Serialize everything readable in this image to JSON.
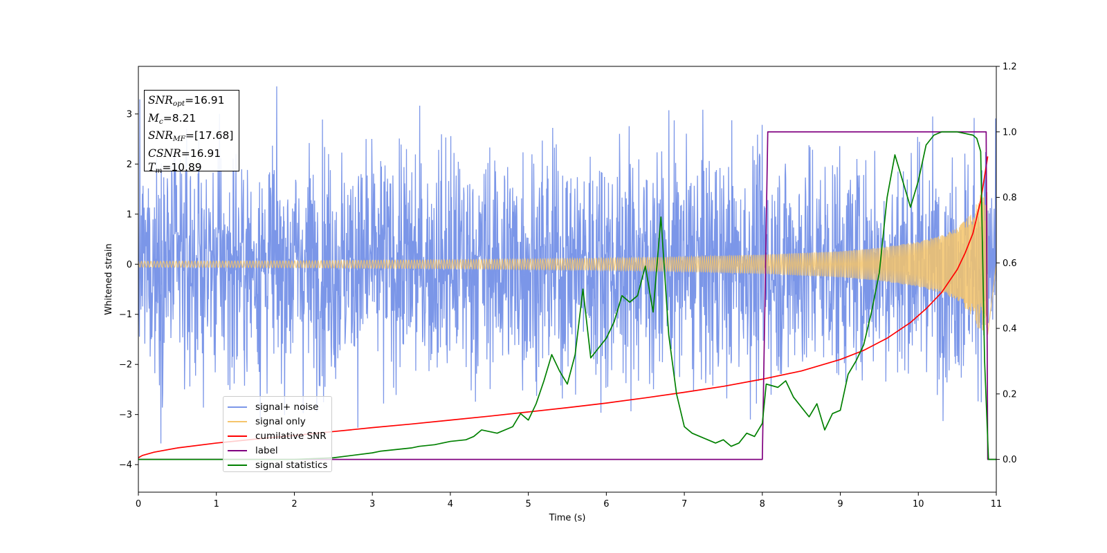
{
  "chart_data": {
    "type": "line",
    "title": "",
    "xlabel": "Time (s)",
    "ylabel": "Whitened strain",
    "xlim": [
      0,
      11
    ],
    "ylim": [
      -4.55,
      3.95
    ],
    "y2lim": [
      -0.1,
      1.2
    ],
    "x_ticks": [
      "0",
      "1",
      "2",
      "3",
      "4",
      "5",
      "6",
      "7",
      "8",
      "9",
      "10",
      "11"
    ],
    "y_ticks": [
      "3",
      "2",
      "1",
      "0",
      "−1",
      "−2",
      "−3",
      "−4"
    ],
    "y2_ticks": [
      "1.2",
      "1.0",
      "0.8",
      "0.6",
      "0.4",
      "0.2",
      "0.0"
    ],
    "grid": false,
    "legend_position": "lower-left",
    "annotation": {
      "snr_opt": "=16.91",
      "mc": "=8.21",
      "snr_mf": "=[17.68]",
      "csnr": "=16.91",
      "tm": "=10.89"
    },
    "series": [
      {
        "name": "signal+ noise",
        "color": "#7b96e8",
        "axis": "left",
        "description_values": {
          "noise_std": 1.0,
          "approx_range": [
            -4.15,
            3.55
          ]
        }
      },
      {
        "name": "signal only",
        "color": "#f5c46a",
        "axis": "left",
        "envelope": {
          "x": [
            0,
            2,
            4,
            6,
            7,
            8,
            9,
            9.5,
            10,
            10.3,
            10.5,
            10.7,
            10.8,
            10.89,
            11
          ],
          "amplitude": [
            0.06,
            0.07,
            0.09,
            0.12,
            0.15,
            0.19,
            0.26,
            0.33,
            0.45,
            0.58,
            0.72,
            1.05,
            1.4,
            1.45,
            0
          ]
        }
      },
      {
        "name": "cumilative SNR",
        "color": "#ff0000",
        "axis": "right",
        "x": [
          0,
          0.05,
          0.2,
          0.5,
          1,
          1.5,
          2,
          2.5,
          3,
          3.5,
          4,
          4.5,
          5,
          5.5,
          6,
          6.5,
          7,
          7.5,
          8,
          8.5,
          9,
          9.3,
          9.6,
          9.9,
          10.1,
          10.3,
          10.5,
          10.6,
          10.7,
          10.8,
          10.89
        ],
        "values": [
          0.005,
          0.012,
          0.022,
          0.035,
          0.05,
          0.062,
          0.073,
          0.085,
          0.097,
          0.108,
          0.12,
          0.132,
          0.145,
          0.158,
          0.172,
          0.188,
          0.205,
          0.223,
          0.245,
          0.27,
          0.305,
          0.333,
          0.37,
          0.418,
          0.46,
          0.51,
          0.58,
          0.63,
          0.69,
          0.79,
          0.925
        ]
      },
      {
        "name": "label",
        "color": "#800080",
        "axis": "right",
        "x": [
          0,
          8.0,
          8.07,
          10.87,
          10.89,
          11
        ],
        "values": [
          0,
          0,
          1,
          1,
          0,
          0
        ]
      },
      {
        "name": "signal statistics",
        "color": "#008000",
        "axis": "right",
        "x": [
          0,
          0.5,
          1,
          1.5,
          2,
          2.5,
          3,
          3.1,
          3.3,
          3.5,
          3.6,
          3.8,
          4,
          4.2,
          4.3,
          4.4,
          4.5,
          4.6,
          4.8,
          4.9,
          5.0,
          5.1,
          5.2,
          5.3,
          5.4,
          5.5,
          5.6,
          5.7,
          5.8,
          5.9,
          6.0,
          6.1,
          6.2,
          6.3,
          6.4,
          6.5,
          6.6,
          6.7,
          6.8,
          6.9,
          7.0,
          7.1,
          7.2,
          7.3,
          7.4,
          7.5,
          7.6,
          7.7,
          7.8,
          7.9,
          8.0,
          8.05,
          8.2,
          8.3,
          8.4,
          8.5,
          8.6,
          8.7,
          8.8,
          8.9,
          9.0,
          9.1,
          9.2,
          9.3,
          9.4,
          9.5,
          9.6,
          9.7,
          9.8,
          9.9,
          10.0,
          10.1,
          10.2,
          10.3,
          10.5,
          10.7,
          10.75,
          10.8,
          10.85,
          10.9,
          11
        ],
        "values": [
          0,
          0,
          0,
          0,
          0,
          0.005,
          0.02,
          0.025,
          0.03,
          0.035,
          0.04,
          0.045,
          0.055,
          0.06,
          0.07,
          0.09,
          0.085,
          0.08,
          0.1,
          0.14,
          0.12,
          0.17,
          0.24,
          0.32,
          0.27,
          0.23,
          0.32,
          0.52,
          0.31,
          0.34,
          0.37,
          0.42,
          0.5,
          0.48,
          0.5,
          0.59,
          0.45,
          0.74,
          0.38,
          0.2,
          0.1,
          0.08,
          0.07,
          0.06,
          0.05,
          0.06,
          0.04,
          0.05,
          0.08,
          0.07,
          0.11,
          0.23,
          0.22,
          0.24,
          0.19,
          0.16,
          0.13,
          0.17,
          0.09,
          0.14,
          0.15,
          0.26,
          0.3,
          0.35,
          0.45,
          0.57,
          0.8,
          0.93,
          0.85,
          0.77,
          0.85,
          0.96,
          0.99,
          1.0,
          1.0,
          0.99,
          0.98,
          0.94,
          0.3,
          0.0,
          0.0
        ]
      }
    ]
  }
}
